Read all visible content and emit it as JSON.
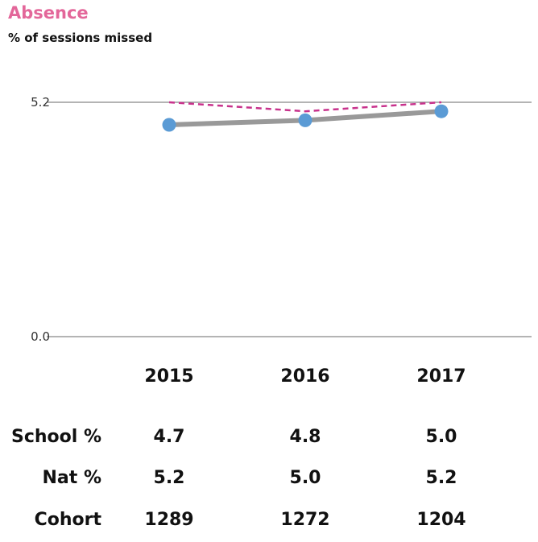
{
  "title": "Absence",
  "subtitle": "% of sessions missed",
  "chart_data": {
    "type": "line",
    "x": [
      "2015",
      "2016",
      "2017"
    ],
    "series": [
      {
        "name": "School %",
        "values": [
          4.7,
          4.8,
          5.0
        ],
        "color": "#999999",
        "marker_color": "#5b9bd5",
        "style": "solid"
      },
      {
        "name": "Nat %",
        "values": [
          5.2,
          5.0,
          5.2
        ],
        "color": "#c8328c",
        "style": "dashed"
      }
    ],
    "yticks": [
      "5.2",
      "0.0"
    ],
    "ylim": [
      0,
      5.2
    ],
    "grid": true
  },
  "table": {
    "years": [
      "2015",
      "2016",
      "2017"
    ],
    "rows": [
      {
        "label": "School %",
        "values": [
          "4.7",
          "4.8",
          "5.0"
        ]
      },
      {
        "label": "Nat %",
        "values": [
          "5.2",
          "5.0",
          "5.2"
        ]
      },
      {
        "label": "Cohort",
        "values": [
          "1289",
          "1272",
          "1204"
        ]
      }
    ]
  }
}
